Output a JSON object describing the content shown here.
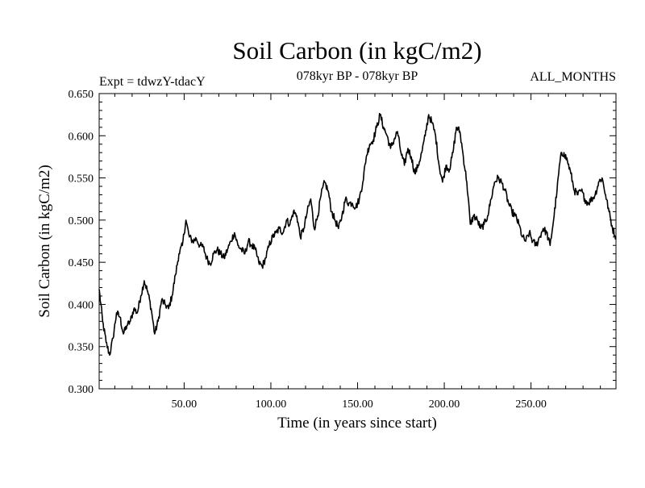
{
  "chart_data": {
    "type": "line",
    "title": "Soil Carbon (in kgC/m2)",
    "experiment": "Expt = tdwzY-tdacY",
    "period": "078kyr BP - 078kyr BP",
    "months": "ALL_MONTHS",
    "xlabel": "Time (in years since start)",
    "ylabel": "Soil Carbon (in kgC/m2)",
    "xlim": [
      1,
      299
    ],
    "ylim": [
      0.3,
      0.65
    ],
    "x_ticks": [
      50,
      100,
      150,
      200,
      250
    ],
    "x_tick_labels": [
      "50.00",
      "100.00",
      "150.00",
      "200.00",
      "250.00"
    ],
    "y_ticks": [
      0.3,
      0.35,
      0.4,
      0.45,
      0.5,
      0.55,
      0.6,
      0.65
    ],
    "y_tick_labels": [
      "0.300",
      "0.350",
      "0.400",
      "0.450",
      "0.500",
      "0.550",
      "0.600",
      "0.650"
    ],
    "grid": false,
    "series": [
      {
        "name": "Soil Carbon",
        "color": "#000000",
        "x": [
          1,
          3,
          5,
          7,
          9,
          11,
          13,
          15,
          17,
          19,
          21,
          23,
          25,
          27,
          29,
          31,
          33,
          35,
          37,
          39,
          41,
          43,
          45,
          47,
          49,
          51,
          53,
          55,
          57,
          59,
          61,
          63,
          65,
          67,
          69,
          71,
          73,
          75,
          77,
          79,
          81,
          83,
          85,
          87,
          89,
          91,
          93,
          95,
          97,
          99,
          101,
          103,
          105,
          107,
          109,
          111,
          113,
          115,
          117,
          119,
          121,
          123,
          125,
          127,
          129,
          131,
          133,
          135,
          137,
          139,
          141,
          143,
          145,
          147,
          149,
          151,
          153,
          155,
          157,
          159,
          161,
          163,
          165,
          167,
          169,
          171,
          173,
          175,
          177,
          179,
          181,
          183,
          185,
          187,
          189,
          191,
          193,
          195,
          197,
          199,
          201,
          203,
          205,
          207,
          209,
          211,
          213,
          215,
          217,
          219,
          221,
          223,
          225,
          227,
          229,
          231,
          233,
          235,
          237,
          239,
          241,
          243,
          245,
          247,
          249,
          251,
          253,
          255,
          257,
          259,
          261,
          263,
          265,
          267,
          269,
          271,
          273,
          275,
          277,
          279,
          281,
          283,
          285,
          287,
          289,
          291,
          293,
          295,
          297,
          299
        ],
        "values": [
          0.418,
          0.38,
          0.355,
          0.34,
          0.36,
          0.39,
          0.385,
          0.365,
          0.375,
          0.38,
          0.395,
          0.39,
          0.41,
          0.428,
          0.415,
          0.395,
          0.365,
          0.38,
          0.405,
          0.4,
          0.395,
          0.41,
          0.435,
          0.46,
          0.47,
          0.5,
          0.48,
          0.475,
          0.478,
          0.47,
          0.468,
          0.455,
          0.448,
          0.46,
          0.465,
          0.46,
          0.455,
          0.465,
          0.475,
          0.485,
          0.47,
          0.465,
          0.46,
          0.475,
          0.47,
          0.465,
          0.45,
          0.445,
          0.455,
          0.47,
          0.48,
          0.485,
          0.49,
          0.485,
          0.5,
          0.495,
          0.51,
          0.505,
          0.48,
          0.49,
          0.51,
          0.525,
          0.49,
          0.505,
          0.53,
          0.545,
          0.535,
          0.51,
          0.5,
          0.49,
          0.505,
          0.525,
          0.52,
          0.52,
          0.515,
          0.525,
          0.545,
          0.575,
          0.59,
          0.595,
          0.61,
          0.625,
          0.61,
          0.6,
          0.585,
          0.595,
          0.605,
          0.58,
          0.565,
          0.585,
          0.575,
          0.555,
          0.565,
          0.58,
          0.6,
          0.625,
          0.615,
          0.6,
          0.565,
          0.545,
          0.565,
          0.56,
          0.58,
          0.61,
          0.605,
          0.575,
          0.545,
          0.495,
          0.505,
          0.5,
          0.49,
          0.495,
          0.505,
          0.525,
          0.545,
          0.55,
          0.545,
          0.535,
          0.52,
          0.51,
          0.505,
          0.495,
          0.48,
          0.475,
          0.485,
          0.475,
          0.47,
          0.48,
          0.49,
          0.485,
          0.47,
          0.5,
          0.535,
          0.575,
          0.58,
          0.57,
          0.555,
          0.535,
          0.53,
          0.535,
          0.525,
          0.52,
          0.525,
          0.53,
          0.545,
          0.55,
          0.53,
          0.51,
          0.49,
          0.48
        ]
      }
    ]
  }
}
